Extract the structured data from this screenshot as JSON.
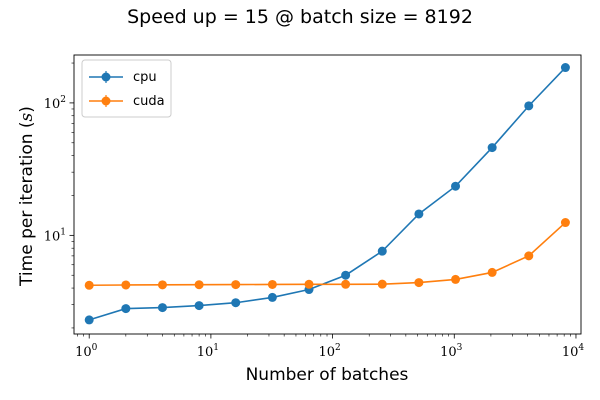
{
  "chart_data": {
    "type": "line",
    "title": "Speed up = 15 @ batch size = 8192",
    "xlabel": "Number of batches",
    "ylabel": "Time per iteration (s)",
    "ylabel_parts": {
      "prefix": "Time per iteration (",
      "symbol": "s",
      "suffix": ")"
    },
    "xscale": "log",
    "yscale": "log",
    "xlim": [
      0.75,
      11000
    ],
    "ylim": [
      1.8,
      230
    ],
    "x_ticks": [
      {
        "value": 1,
        "base": "10",
        "exp": "0"
      },
      {
        "value": 10,
        "base": "10",
        "exp": "1"
      },
      {
        "value": 100,
        "base": "10",
        "exp": "2"
      },
      {
        "value": 1000,
        "base": "10",
        "exp": "3"
      },
      {
        "value": 10000,
        "base": "10",
        "exp": "4"
      }
    ],
    "y_ticks": [
      {
        "value": 10,
        "base": "10",
        "exp": "1"
      },
      {
        "value": 100,
        "base": "10",
        "exp": "2"
      }
    ],
    "x": [
      1,
      2,
      4,
      8,
      16,
      32,
      64,
      128,
      256,
      512,
      1024,
      2048,
      4096,
      8192
    ],
    "series": [
      {
        "name": "cpu",
        "color": "#1f77b4",
        "values": [
          2.3,
          2.8,
          2.85,
          2.95,
          3.1,
          3.4,
          3.9,
          5.0,
          7.6,
          14.5,
          23.5,
          46,
          95,
          185
        ]
      },
      {
        "name": "cuda",
        "color": "#ff7f0e",
        "values": [
          4.2,
          4.22,
          4.23,
          4.24,
          4.25,
          4.26,
          4.27,
          4.27,
          4.28,
          4.4,
          4.65,
          5.25,
          7.0,
          12.5
        ]
      }
    ],
    "legend_position": "upper-left",
    "grid": false
  }
}
